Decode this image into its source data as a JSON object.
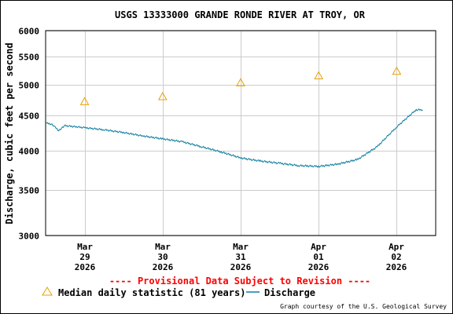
{
  "chart_data": {
    "type": "line",
    "title": "USGS 13333000 GRANDE RONDE RIVER AT TROY, OR",
    "ylabel": "Discharge, cubic feet per second",
    "xlabel": "",
    "y_scale": "log",
    "ylim": [
      3000,
      6000
    ],
    "y_ticks": [
      {
        "value": 3000,
        "label": "3000"
      },
      {
        "value": 3500,
        "label": "3500"
      },
      {
        "value": 4000,
        "label": "4000"
      },
      {
        "value": 4500,
        "label": "4500"
      },
      {
        "value": 5000,
        "label": "5000"
      },
      {
        "value": 5500,
        "label": "5500"
      },
      {
        "value": 6000,
        "label": "6000"
      }
    ],
    "xlim": [
      "2026-03-28T12:00",
      "2026-04-02T12:00"
    ],
    "x_ticks": [
      {
        "value": "2026-03-29T00:00",
        "label_lines": [
          "Mar",
          "29",
          "2026"
        ]
      },
      {
        "value": "2026-03-30T00:00",
        "label_lines": [
          "Mar",
          "30",
          "2026"
        ]
      },
      {
        "value": "2026-03-31T00:00",
        "label_lines": [
          "Mar",
          "31",
          "2026"
        ]
      },
      {
        "value": "2026-04-01T00:00",
        "label_lines": [
          "Apr",
          "01",
          "2026"
        ]
      },
      {
        "value": "2026-04-02T00:00",
        "label_lines": [
          "Apr",
          "02",
          "2026"
        ]
      }
    ],
    "grid": true,
    "series": [
      {
        "name": "Discharge",
        "kind": "line",
        "color": "#0f7f9f",
        "points": [
          [
            "2026-03-28T12:00",
            4390
          ],
          [
            "2026-03-28T14:00",
            4370
          ],
          [
            "2026-03-28T16:00",
            4280
          ],
          [
            "2026-03-28T18:00",
            4350
          ],
          [
            "2026-03-29T00:00",
            4320
          ],
          [
            "2026-03-29T06:00",
            4290
          ],
          [
            "2026-03-29T12:00",
            4250
          ],
          [
            "2026-03-29T18:00",
            4200
          ],
          [
            "2026-03-30T00:00",
            4160
          ],
          [
            "2026-03-30T06:00",
            4120
          ],
          [
            "2026-03-30T12:00",
            4050
          ],
          [
            "2026-03-30T18:00",
            3980
          ],
          [
            "2026-03-31T00:00",
            3900
          ],
          [
            "2026-03-31T06:00",
            3860
          ],
          [
            "2026-03-31T12:00",
            3830
          ],
          [
            "2026-03-31T18:00",
            3800
          ],
          [
            "2026-04-01T00:00",
            3790
          ],
          [
            "2026-04-01T06:00",
            3820
          ],
          [
            "2026-04-01T12:00",
            3880
          ],
          [
            "2026-04-01T18:00",
            4050
          ],
          [
            "2026-04-02T00:00",
            4330
          ],
          [
            "2026-04-02T06:00",
            4590
          ],
          [
            "2026-04-02T08:00",
            4590
          ]
        ]
      },
      {
        "name": "Median daily statistic (81 years)",
        "kind": "marker",
        "marker": "triangle",
        "color": "#e8a000",
        "points": [
          [
            "2026-03-29T00:00",
            4720
          ],
          [
            "2026-03-30T00:00",
            4800
          ],
          [
            "2026-03-31T00:00",
            5030
          ],
          [
            "2026-04-01T00:00",
            5150
          ],
          [
            "2026-04-02T00:00",
            5230
          ]
        ]
      }
    ],
    "legend_position": "bottom",
    "legend": [
      {
        "label": "Median daily statistic (81 years)",
        "symbol": "triangle"
      },
      {
        "label": "Discharge",
        "symbol": "line"
      }
    ]
  },
  "notice": "---- Provisional Data Subject to Revision ----",
  "credit": "Graph courtesy of the U.S. Geological Survey",
  "colors": {
    "notice": "#ff0000",
    "grid": "#cccccc",
    "median": "#e8a000",
    "discharge": "#0f7f9f"
  }
}
